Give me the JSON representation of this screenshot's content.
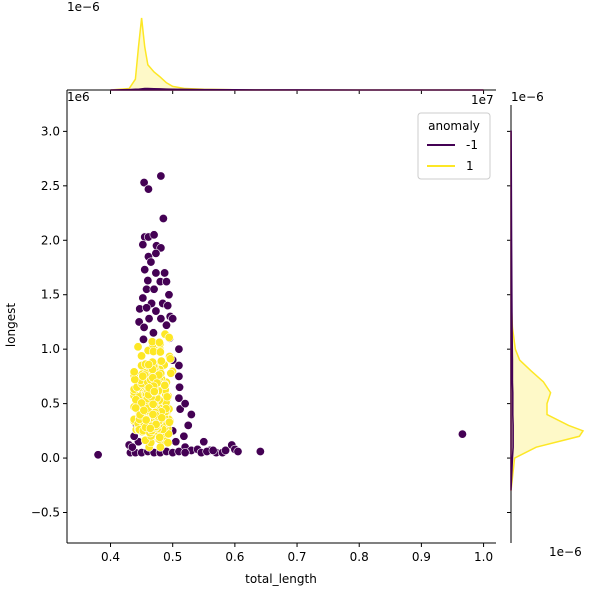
{
  "chart_data": {
    "type": "scatter",
    "kind": "jointplot",
    "xlabel": "total_length",
    "ylabel": "longest",
    "x_offset_label": "1e7",
    "y_offset_label": "1e6",
    "top_marginal_offset_label": "1e−6",
    "right_marginal_offset_label": "1e−6",
    "x_scale": 10000000,
    "y_scale": 1000000,
    "xlim": [
      0.33,
      1.02
    ],
    "ylim": [
      -0.78,
      3.38
    ],
    "x_ticks": [
      0.4,
      0.5,
      0.6,
      0.7,
      0.8,
      0.9,
      1.0
    ],
    "x_tick_labels": [
      "0.4",
      "0.5",
      "0.6",
      "0.7",
      "0.8",
      "0.9",
      "1.0"
    ],
    "y_ticks": [
      -0.5,
      0.0,
      0.5,
      1.0,
      1.5,
      2.0,
      2.5,
      3.0
    ],
    "y_tick_labels": [
      "−0.5",
      "0.0",
      "0.5",
      "1.0",
      "1.5",
      "2.0",
      "2.5",
      "3.0"
    ],
    "grid": false,
    "legend": {
      "title": "anomaly",
      "placement": "top-right",
      "entries": [
        {
          "label": "-1",
          "color": "#440154"
        },
        {
          "label": "1",
          "color": "#fde725"
        }
      ]
    },
    "series": [
      {
        "name": "-1",
        "color": "#440154",
        "points": [
          [
            0.454,
            2.53
          ],
          [
            0.481,
            2.59
          ],
          [
            0.461,
            2.47
          ],
          [
            0.485,
            2.2
          ],
          [
            0.455,
            2.03
          ],
          [
            0.461,
            2.03
          ],
          [
            0.47,
            2.05
          ],
          [
            0.474,
            1.95
          ],
          [
            0.481,
            1.93
          ],
          [
            0.452,
            1.96
          ],
          [
            0.461,
            1.85
          ],
          [
            0.473,
            1.88
          ],
          [
            0.465,
            1.8
          ],
          [
            0.455,
            1.73
          ],
          [
            0.473,
            1.7
          ],
          [
            0.487,
            1.7
          ],
          [
            0.46,
            1.63
          ],
          [
            0.48,
            1.62
          ],
          [
            0.49,
            1.62
          ],
          [
            0.458,
            1.55
          ],
          [
            0.47,
            1.55
          ],
          [
            0.494,
            1.5
          ],
          [
            0.452,
            1.47
          ],
          [
            0.466,
            1.42
          ],
          [
            0.484,
            1.42
          ],
          [
            0.492,
            1.4
          ],
          [
            0.447,
            1.37
          ],
          [
            0.458,
            1.38
          ],
          [
            0.473,
            1.35
          ],
          [
            0.496,
            1.3
          ],
          [
            0.462,
            1.28
          ],
          [
            0.481,
            1.28
          ],
          [
            0.446,
            1.25
          ],
          [
            0.49,
            1.22
          ],
          [
            0.454,
            1.2
          ],
          [
            0.5,
            1.28
          ],
          [
            0.469,
            1.15
          ],
          [
            0.495,
            1.1
          ],
          [
            0.453,
            1.09
          ],
          [
            0.51,
            1.0
          ],
          [
            0.5,
            0.9
          ],
          [
            0.51,
            0.85
          ],
          [
            0.51,
            0.75
          ],
          [
            0.511,
            0.65
          ],
          [
            0.51,
            0.55
          ],
          [
            0.512,
            0.45
          ],
          [
            0.52,
            0.5
          ],
          [
            0.53,
            0.4
          ],
          [
            0.525,
            0.3
          ],
          [
            0.518,
            0.2
          ],
          [
            0.52,
            0.1
          ],
          [
            0.5,
            0.25
          ],
          [
            0.505,
            0.15
          ],
          [
            0.53,
            0.07
          ],
          [
            0.54,
            0.08
          ],
          [
            0.55,
            0.15
          ],
          [
            0.56,
            0.07
          ],
          [
            0.57,
            0.05
          ],
          [
            0.58,
            0.05
          ],
          [
            0.585,
            0.07
          ],
          [
            0.595,
            0.12
          ],
          [
            0.6,
            0.08
          ],
          [
            0.605,
            0.06
          ],
          [
            0.641,
            0.06
          ],
          [
            0.546,
            0.05
          ],
          [
            0.555,
            0.06
          ],
          [
            0.565,
            0.07
          ],
          [
            0.43,
            0.12
          ],
          [
            0.432,
            0.05
          ],
          [
            0.44,
            0.05
          ],
          [
            0.45,
            0.05
          ],
          [
            0.46,
            0.06
          ],
          [
            0.47,
            0.05
          ],
          [
            0.48,
            0.05
          ],
          [
            0.49,
            0.06
          ],
          [
            0.5,
            0.05
          ],
          [
            0.51,
            0.06
          ],
          [
            0.52,
            0.05
          ],
          [
            0.435,
            0.1
          ],
          [
            0.445,
            0.15
          ],
          [
            0.438,
            0.2
          ],
          [
            0.442,
            0.3
          ],
          [
            0.44,
            0.35
          ],
          [
            0.38,
            0.03
          ],
          [
            0.966,
            0.22
          ]
        ]
      },
      {
        "name": "1",
        "color": "#fde725",
        "cluster": {
          "x_range": [
            0.44,
            0.51
          ],
          "y_range": [
            0.1,
            1.2
          ],
          "points_approx": 600
        }
      }
    ],
    "marginal_x": {
      "description": "density of total_length",
      "x": [
        0.4,
        0.43,
        0.44,
        0.445,
        0.45,
        0.455,
        0.46,
        0.47,
        0.48,
        0.49,
        0.5,
        0.52,
        0.55,
        0.6,
        0.7,
        0.8,
        1.0
      ],
      "density_1": [
        0,
        0.02,
        0.15,
        0.6,
        1.0,
        0.6,
        0.35,
        0.25,
        0.18,
        0.1,
        0.05,
        0.02,
        0.01,
        0.003,
        0,
        0,
        0
      ],
      "density_-1": [
        0,
        0.005,
        0.01,
        0.01,
        0.015,
        0.02,
        0.02,
        0.018,
        0.015,
        0.012,
        0.01,
        0.008,
        0.005,
        0.003,
        0.001,
        0,
        0
      ]
    },
    "marginal_y": {
      "description": "density of longest",
      "y": [
        -0.3,
        0.0,
        0.1,
        0.2,
        0.25,
        0.3,
        0.4,
        0.5,
        0.6,
        0.7,
        0.8,
        0.9,
        1.0,
        1.2,
        1.5,
        2.0,
        2.5,
        3.0
      ],
      "density_1": [
        0,
        0.05,
        0.35,
        0.95,
        1.0,
        0.8,
        0.5,
        0.5,
        0.55,
        0.45,
        0.28,
        0.12,
        0.06,
        0.02,
        0,
        0,
        0,
        0
      ],
      "density_-1": [
        0,
        0.02,
        0.03,
        0.03,
        0.03,
        0.03,
        0.025,
        0.025,
        0.025,
        0.02,
        0.02,
        0.02,
        0.018,
        0.015,
        0.012,
        0.008,
        0.005,
        0.002
      ]
    }
  }
}
